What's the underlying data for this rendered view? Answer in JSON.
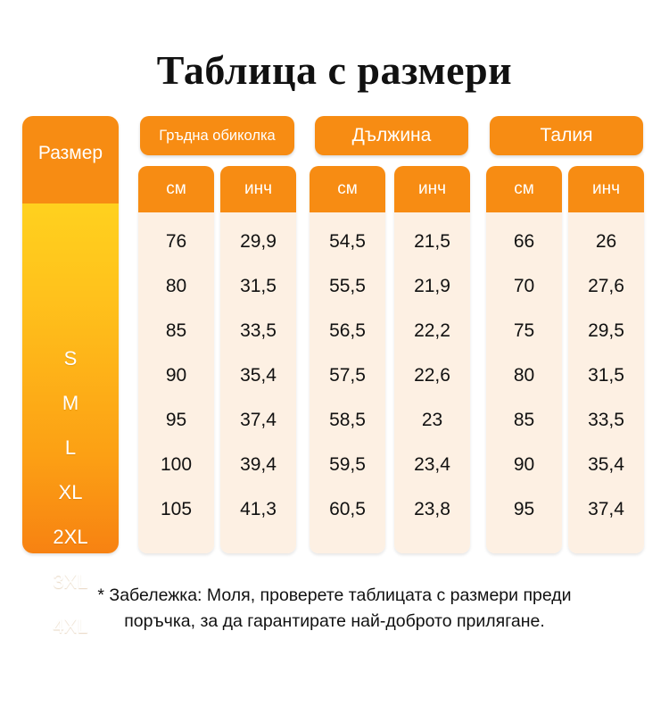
{
  "title": "Таблица с размери",
  "size_header": "Размер",
  "sizes": [
    "S",
    "M",
    "L",
    "XL",
    "2XL",
    "3XL",
    "4XL"
  ],
  "groups": [
    {
      "label": "Гръдна обиколка",
      "units": [
        "см",
        "инч"
      ]
    },
    {
      "label": "Дължина",
      "units": [
        "см",
        "инч"
      ]
    },
    {
      "label": "Талия",
      "units": [
        "см",
        "инч"
      ]
    }
  ],
  "table": {
    "columns": [
      {
        "group": "Гръдна обиколка",
        "unit": "см",
        "values": [
          "76",
          "80",
          "85",
          "90",
          "95",
          "100",
          "105"
        ]
      },
      {
        "group": "Гръдна обиколка",
        "unit": "инч",
        "values": [
          "29,9",
          "31,5",
          "33,5",
          "35,4",
          "37,4",
          "39,4",
          "41,3"
        ]
      },
      {
        "group": "Дължина",
        "unit": "см",
        "values": [
          "54,5",
          "55,5",
          "56,5",
          "57,5",
          "58,5",
          "59,5",
          "60,5"
        ]
      },
      {
        "group": "Дължина",
        "unit": "инч",
        "values": [
          "21,5",
          "21,9",
          "22,2",
          "22,6",
          "23",
          "23,4",
          "23,8"
        ]
      },
      {
        "group": "Талия",
        "unit": "см",
        "values": [
          "66",
          "70",
          "75",
          "80",
          "85",
          "90",
          "95"
        ]
      },
      {
        "group": "Талия",
        "unit": "инч",
        "values": [
          "26",
          "27,6",
          "29,5",
          "31,5",
          "33,5",
          "35,4",
          "37,4"
        ]
      }
    ]
  },
  "note": {
    "line1": "* Забележка: Моля, проверете таблицата с размери преди",
    "line2": "поръчка, за да гарантирате най-доброто прилягане."
  },
  "colors": {
    "accent_orange": "#f78c13",
    "size_gradient_top": "#ffd11e",
    "size_gradient_bottom": "#f78212",
    "cell_background": "#fdf0e3",
    "text": "#111111"
  }
}
